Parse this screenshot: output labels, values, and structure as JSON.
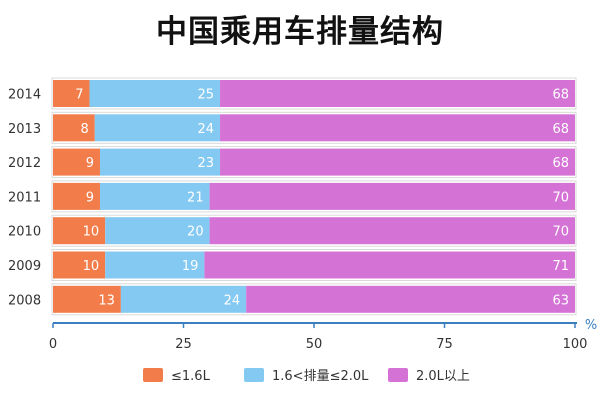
{
  "chart_data": {
    "type": "bar",
    "orientation": "horizontal",
    "stacked": true,
    "title": "中国乘用车排量结构",
    "categories": [
      "2014",
      "2013",
      "2012",
      "2011",
      "2010",
      "2009",
      "2008"
    ],
    "series": [
      {
        "name": "≤1.6L",
        "color": "#f27d4a",
        "values": [
          7,
          8,
          9,
          9,
          10,
          10,
          13
        ]
      },
      {
        "name": "1.6<排量≤2.0L",
        "color": "#84c9f2",
        "values": [
          25,
          24,
          23,
          21,
          20,
          19,
          24
        ]
      },
      {
        "name": "2.0L以上",
        "color": "#d572d6",
        "values": [
          68,
          68,
          68,
          70,
          70,
          71,
          63
        ]
      }
    ],
    "xlim": [
      0,
      100
    ],
    "xticks": [
      "0",
      "25",
      "50",
      "75",
      "100"
    ],
    "unit": "%",
    "grid": false,
    "legend_position": "bottom"
  }
}
